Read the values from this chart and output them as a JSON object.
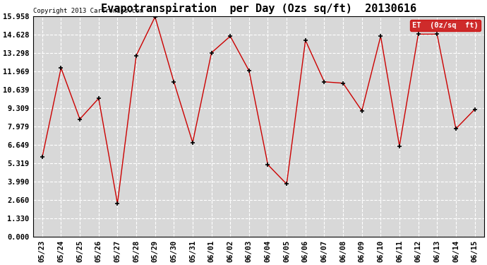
{
  "title": "Evapotranspiration  per Day (Ozs sq/ft)  20130616",
  "copyright": "Copyright 2013 Cartronics.com",
  "legend_label": "ET  (0z/sq  ft)",
  "x_labels": [
    "05/23",
    "05/24",
    "05/25",
    "05/26",
    "05/27",
    "05/28",
    "05/29",
    "05/30",
    "05/31",
    "06/01",
    "06/02",
    "06/03",
    "06/04",
    "06/05",
    "06/06",
    "06/07",
    "06/08",
    "06/09",
    "06/10",
    "06/11",
    "06/12",
    "06/13",
    "06/14",
    "06/15"
  ],
  "y_values": [
    5.75,
    12.2,
    8.5,
    10.0,
    2.4,
    13.1,
    15.9,
    11.2,
    6.8,
    13.3,
    14.5,
    12.0,
    5.2,
    3.8,
    14.2,
    11.2,
    11.1,
    9.1,
    14.5,
    6.55,
    14.65,
    14.65,
    7.8,
    9.2
  ],
  "line_color": "#cc0000",
  "marker_color": "#000000",
  "background_color": "#ffffff",
  "plot_bg_color": "#d8d8d8",
  "grid_color": "#ffffff",
  "y_ticks": [
    0.0,
    1.33,
    2.66,
    3.99,
    5.319,
    6.649,
    7.979,
    9.309,
    10.639,
    11.969,
    13.298,
    14.628,
    15.958
  ],
  "y_tick_labels": [
    "0.000",
    "1.330",
    "2.660",
    "3.990",
    "5.319",
    "6.649",
    "7.979",
    "9.309",
    "10.639",
    "11.969",
    "13.298",
    "14.628",
    "15.958"
  ],
  "ylim": [
    0.0,
    15.958
  ],
  "title_fontsize": 11,
  "tick_fontsize": 7.5,
  "legend_bg": "#cc0000",
  "legend_text_color": "#ffffff"
}
